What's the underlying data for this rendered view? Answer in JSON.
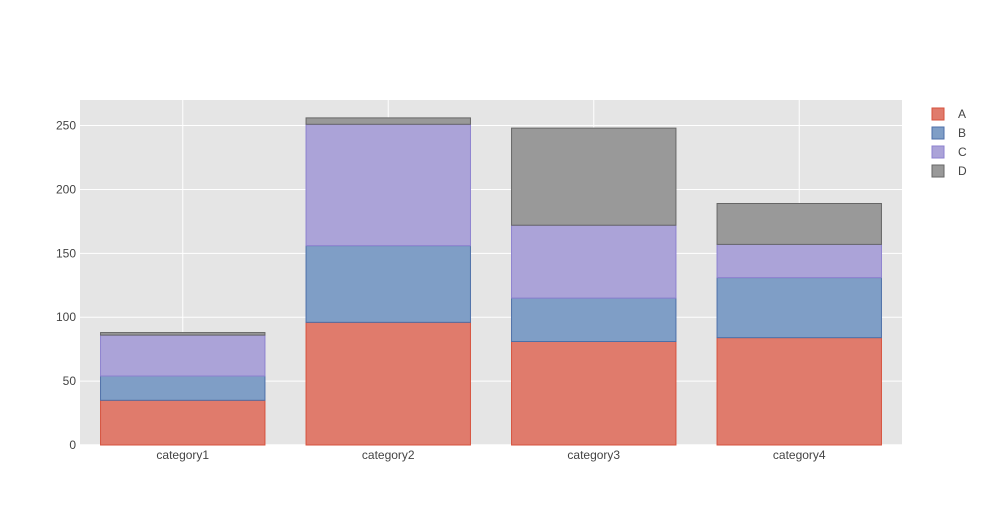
{
  "chart_data": {
    "type": "bar",
    "barmode": "stack",
    "categories": [
      "category1",
      "category2",
      "category3",
      "category4"
    ],
    "series": [
      {
        "name": "A",
        "values": [
          35,
          96,
          81,
          84
        ],
        "color": "#e07b6c",
        "stroke": "#d6513c"
      },
      {
        "name": "B",
        "values": [
          19,
          60,
          34,
          47
        ],
        "color": "#7f9ec6",
        "stroke": "#4d6fa8"
      },
      {
        "name": "C",
        "values": [
          32,
          95,
          57,
          26
        ],
        "color": "#aba3d8",
        "stroke": "#8c80cf"
      },
      {
        "name": "D",
        "values": [
          2,
          5,
          76,
          32
        ],
        "color": "#999999",
        "stroke": "#666666"
      }
    ],
    "yticks": [
      0,
      50,
      100,
      150,
      200,
      250
    ],
    "ylim": [
      0,
      270
    ],
    "grid": true,
    "legend_position": "top-right",
    "title": "",
    "xlabel": "",
    "ylabel": ""
  },
  "colors": {
    "plot_bg": "#e5e5e5",
    "grid": "#ffffff",
    "text": "#444444"
  }
}
